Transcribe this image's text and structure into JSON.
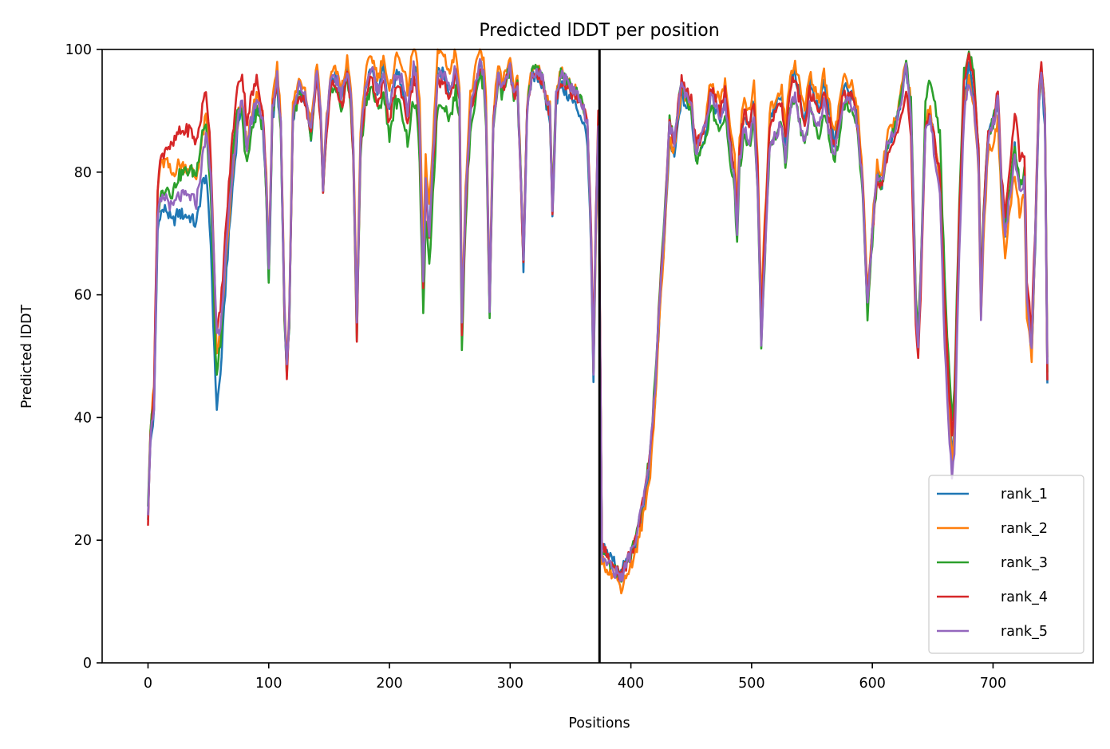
{
  "chart_data": {
    "type": "line",
    "title": "Predicted lDDT per position",
    "xlabel": "Positions",
    "ylabel": "Predicted lDDT",
    "xlim": [
      -38,
      783
    ],
    "ylim": [
      0,
      100
    ],
    "xticks": [
      0,
      100,
      200,
      300,
      400,
      500,
      600,
      700
    ],
    "yticks": [
      0,
      20,
      40,
      60,
      80,
      100
    ],
    "xtick_labels": [
      "0",
      "100",
      "200",
      "300",
      "400",
      "500",
      "600",
      "700"
    ],
    "ytick_labels": [
      "0",
      "20",
      "40",
      "60",
      "80",
      "100"
    ],
    "grid": false,
    "legend_position": "lower-right",
    "vline_x": 374,
    "series": [
      {
        "name": "rank_1",
        "color": "#1f77b4",
        "offset": 0.0,
        "deltas": [
          [
            0,
            -1
          ],
          [
            45,
            -4
          ],
          [
            55,
            -12
          ],
          [
            60,
            -8
          ],
          [
            65,
            -4
          ],
          [
            80,
            0
          ],
          [
            100,
            -2
          ],
          [
            160,
            0
          ],
          [
            230,
            0
          ],
          [
            300,
            0
          ],
          [
            370,
            -3
          ],
          [
            378,
            1.5
          ],
          [
            390,
            1
          ],
          [
            430,
            -3
          ],
          [
            520,
            0.5
          ],
          [
            600,
            0
          ],
          [
            700,
            0
          ],
          [
            745,
            -2
          ]
        ]
      },
      {
        "name": "rank_2",
        "color": "#ff7f0e",
        "offset": 0.0,
        "deltas": [
          [
            0,
            0
          ],
          [
            10,
            6
          ],
          [
            30,
            5
          ],
          [
            50,
            3
          ],
          [
            55,
            -2
          ],
          [
            80,
            0
          ],
          [
            100,
            1
          ],
          [
            160,
            1
          ],
          [
            230,
            4
          ],
          [
            300,
            1
          ],
          [
            360,
            0
          ],
          [
            372,
            -2
          ],
          [
            380,
            -1
          ],
          [
            420,
            -3
          ],
          [
            480,
            2
          ],
          [
            520,
            2
          ],
          [
            560,
            2
          ],
          [
            640,
            1
          ],
          [
            700,
            -3
          ],
          [
            720,
            -5
          ],
          [
            745,
            1
          ]
        ]
      },
      {
        "name": "rank_3",
        "color": "#2ca02c",
        "offset": 0.0,
        "deltas": [
          [
            0,
            1
          ],
          [
            10,
            1
          ],
          [
            30,
            4
          ],
          [
            45,
            5
          ],
          [
            56,
            -6
          ],
          [
            70,
            4
          ],
          [
            80,
            -3
          ],
          [
            100,
            -1
          ],
          [
            170,
            -2
          ],
          [
            230,
            -6
          ],
          [
            300,
            0
          ],
          [
            370,
            0
          ],
          [
            378,
            0
          ],
          [
            400,
            0
          ],
          [
            430,
            1
          ],
          [
            460,
            -3
          ],
          [
            520,
            -4
          ],
          [
            560,
            -4
          ],
          [
            640,
            2
          ],
          [
            655,
            8
          ],
          [
            700,
            0
          ],
          [
            745,
            0
          ]
        ]
      },
      {
        "name": "rank_4",
        "color": "#d62728",
        "offset": 0.0,
        "deltas": [
          [
            0,
            -2
          ],
          [
            8,
            6
          ],
          [
            20,
            10
          ],
          [
            35,
            11
          ],
          [
            50,
            7
          ],
          [
            56,
            1
          ],
          [
            70,
            6
          ],
          [
            90,
            3
          ],
          [
            100,
            0
          ],
          [
            115,
            -1
          ],
          [
            200,
            -2
          ],
          [
            300,
            0
          ],
          [
            350,
            -1
          ],
          [
            372,
            2
          ],
          [
            378,
            1
          ],
          [
            390,
            0
          ],
          [
            430,
            0
          ],
          [
            470,
            0
          ],
          [
            520,
            0
          ],
          [
            560,
            -1
          ],
          [
            600,
            0
          ],
          [
            635,
            -4
          ],
          [
            665,
            4
          ],
          [
            700,
            0
          ],
          [
            720,
            5
          ],
          [
            745,
            -1
          ]
        ]
      },
      {
        "name": "rank_5",
        "color": "#9467bd",
        "offset": 0.0,
        "deltas": [
          [
            0,
            0
          ],
          [
            10,
            0
          ],
          [
            30,
            0
          ],
          [
            45,
            0
          ],
          [
            56,
            2
          ],
          [
            60,
            0
          ],
          [
            100,
            0
          ],
          [
            200,
            0
          ],
          [
            300,
            0
          ],
          [
            370,
            0
          ],
          [
            378,
            -0.5
          ],
          [
            400,
            0
          ],
          [
            430,
            0
          ],
          [
            470,
            -1
          ],
          [
            520,
            -4
          ],
          [
            560,
            -3
          ],
          [
            600,
            0
          ],
          [
            640,
            0
          ],
          [
            665,
            -4
          ],
          [
            700,
            0
          ],
          [
            715,
            -2
          ],
          [
            745,
            0
          ]
        ]
      }
    ],
    "base_profile": [
      [
        0,
        25
      ],
      [
        2,
        37
      ],
      [
        5,
        42
      ],
      [
        8,
        72
      ],
      [
        10,
        75
      ],
      [
        15,
        76
      ],
      [
        20,
        74
      ],
      [
        25,
        76
      ],
      [
        30,
        76
      ],
      [
        35,
        76
      ],
      [
        40,
        75
      ],
      [
        45,
        82
      ],
      [
        48,
        86
      ],
      [
        50,
        82
      ],
      [
        52,
        78
      ],
      [
        55,
        62
      ],
      [
        57,
        52
      ],
      [
        60,
        55
      ],
      [
        65,
        68
      ],
      [
        70,
        80
      ],
      [
        75,
        90
      ],
      [
        78,
        91
      ],
      [
        82,
        84
      ],
      [
        85,
        88
      ],
      [
        90,
        92
      ],
      [
        95,
        89
      ],
      [
        98,
        78
      ],
      [
        100,
        64
      ],
      [
        103,
        90
      ],
      [
        107,
        96
      ],
      [
        110,
        88
      ],
      [
        113,
        58
      ],
      [
        115,
        48
      ],
      [
        117,
        57
      ],
      [
        120,
        90
      ],
      [
        125,
        94
      ],
      [
        130,
        93
      ],
      [
        135,
        87
      ],
      [
        140,
        97
      ],
      [
        143,
        90
      ],
      [
        145,
        78
      ],
      [
        148,
        88
      ],
      [
        152,
        96
      ],
      [
        157,
        95
      ],
      [
        160,
        92
      ],
      [
        165,
        97
      ],
      [
        168,
        93
      ],
      [
        170,
        84
      ],
      [
        173,
        55
      ],
      [
        176,
        85
      ],
      [
        180,
        94
      ],
      [
        185,
        97
      ],
      [
        188,
        95
      ],
      [
        191,
        93
      ],
      [
        195,
        97
      ],
      [
        198,
        92
      ],
      [
        200,
        90
      ],
      [
        205,
        96
      ],
      [
        210,
        95
      ],
      [
        215,
        90
      ],
      [
        220,
        97
      ],
      [
        222,
        96
      ],
      [
        225,
        88
      ],
      [
        228,
        62
      ],
      [
        230,
        78
      ],
      [
        233,
        70
      ],
      [
        236,
        82
      ],
      [
        240,
        96
      ],
      [
        245,
        96
      ],
      [
        250,
        93
      ],
      [
        255,
        97
      ],
      [
        258,
        92
      ],
      [
        260,
        55
      ],
      [
        263,
        75
      ],
      [
        267,
        90
      ],
      [
        270,
        93
      ],
      [
        275,
        98
      ],
      [
        278,
        96
      ],
      [
        280,
        90
      ],
      [
        283,
        58
      ],
      [
        286,
        88
      ],
      [
        290,
        96
      ],
      [
        293,
        93
      ],
      [
        296,
        95
      ],
      [
        300,
        97
      ],
      [
        303,
        92
      ],
      [
        306,
        94
      ],
      [
        309,
        78
      ],
      [
        311,
        65
      ],
      [
        314,
        90
      ],
      [
        318,
        96
      ],
      [
        322,
        97
      ],
      [
        327,
        95
      ],
      [
        330,
        92
      ],
      [
        333,
        90
      ],
      [
        335,
        74
      ],
      [
        338,
        93
      ],
      [
        342,
        96
      ],
      [
        346,
        95
      ],
      [
        350,
        94
      ],
      [
        355,
        93
      ],
      [
        360,
        91
      ],
      [
        364,
        88
      ],
      [
        367,
        70
      ],
      [
        369,
        48
      ],
      [
        371,
        72
      ],
      [
        373,
        88
      ],
      [
        376,
        18
      ],
      [
        379,
        17
      ],
      [
        383,
        16
      ],
      [
        388,
        15
      ],
      [
        392,
        14
      ],
      [
        396,
        16
      ],
      [
        400,
        18
      ],
      [
        404,
        20
      ],
      [
        408,
        24
      ],
      [
        412,
        28
      ],
      [
        416,
        34
      ],
      [
        420,
        45
      ],
      [
        424,
        60
      ],
      [
        428,
        72
      ],
      [
        432,
        88
      ],
      [
        436,
        85
      ],
      [
        440,
        92
      ],
      [
        442,
        95
      ],
      [
        446,
        93
      ],
      [
        450,
        92
      ],
      [
        454,
        84
      ],
      [
        458,
        86
      ],
      [
        462,
        88
      ],
      [
        466,
        94
      ],
      [
        470,
        92
      ],
      [
        474,
        90
      ],
      [
        478,
        93
      ],
      [
        482,
        86
      ],
      [
        486,
        80
      ],
      [
        488,
        72
      ],
      [
        490,
        84
      ],
      [
        494,
        90
      ],
      [
        498,
        88
      ],
      [
        502,
        92
      ],
      [
        505,
        80
      ],
      [
        508,
        56
      ],
      [
        511,
        70
      ],
      [
        515,
        88
      ],
      [
        520,
        90
      ],
      [
        525,
        92
      ],
      [
        528,
        85
      ],
      [
        532,
        94
      ],
      [
        536,
        96
      ],
      [
        540,
        92
      ],
      [
        544,
        88
      ],
      [
        548,
        94
      ],
      [
        552,
        92
      ],
      [
        556,
        90
      ],
      [
        560,
        94
      ],
      [
        564,
        90
      ],
      [
        568,
        85
      ],
      [
        572,
        88
      ],
      [
        576,
        94
      ],
      [
        580,
        93
      ],
      [
        584,
        92
      ],
      [
        588,
        88
      ],
      [
        592,
        78
      ],
      [
        596,
        58
      ],
      [
        600,
        70
      ],
      [
        604,
        80
      ],
      [
        608,
        78
      ],
      [
        612,
        84
      ],
      [
        616,
        86
      ],
      [
        620,
        88
      ],
      [
        624,
        92
      ],
      [
        628,
        97
      ],
      [
        632,
        90
      ],
      [
        636,
        58
      ],
      [
        638,
        52
      ],
      [
        640,
        62
      ],
      [
        644,
        88
      ],
      [
        648,
        90
      ],
      [
        652,
        84
      ],
      [
        656,
        78
      ],
      [
        660,
        55
      ],
      [
        664,
        40
      ],
      [
        666,
        34
      ],
      [
        668,
        38
      ],
      [
        672,
        70
      ],
      [
        676,
        92
      ],
      [
        680,
        97
      ],
      [
        684,
        93
      ],
      [
        688,
        82
      ],
      [
        690,
        58
      ],
      [
        692,
        72
      ],
      [
        696,
        86
      ],
      [
        700,
        88
      ],
      [
        704,
        92
      ],
      [
        707,
        78
      ],
      [
        710,
        70
      ],
      [
        714,
        78
      ],
      [
        718,
        85
      ],
      [
        722,
        78
      ],
      [
        726,
        80
      ],
      [
        728,
        60
      ],
      [
        732,
        52
      ],
      [
        735,
        70
      ],
      [
        738,
        92
      ],
      [
        740,
        97
      ],
      [
        743,
        90
      ],
      [
        745,
        48
      ]
    ]
  }
}
